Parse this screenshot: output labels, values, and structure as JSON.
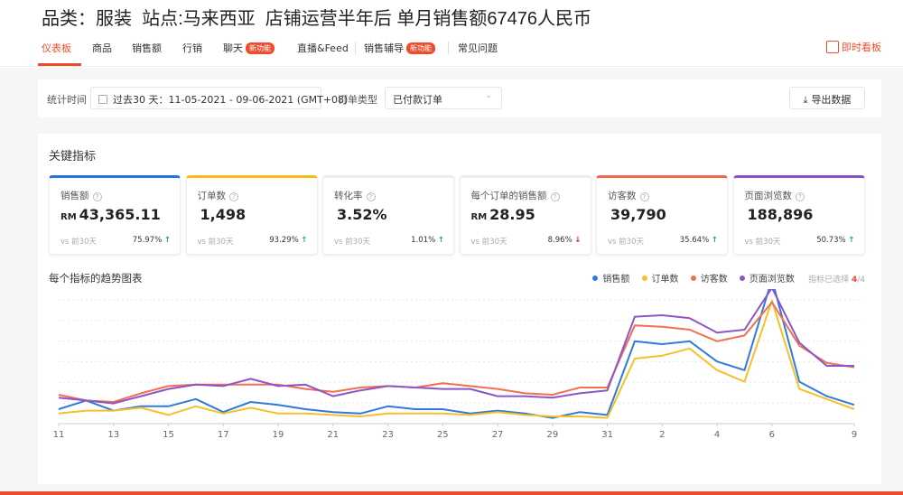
{
  "caption": "品类：服装  站点:马来西亚  店铺运营半年后 单月销售额67476人民币",
  "nav": {
    "tabs": [
      {
        "label": "仪表板",
        "active": true
      },
      {
        "label": "商品"
      },
      {
        "label": "销售额"
      },
      {
        "label": "行销"
      },
      {
        "label": "聊天",
        "badge": "新功能"
      },
      {
        "label": "直播&Feed"
      },
      {
        "label": "销售辅导",
        "badge": "新功能"
      },
      {
        "label": "常见问题"
      }
    ],
    "live_label": "即时看板"
  },
  "filter": {
    "time_label": "统计时间",
    "time_value": "过去30 天：11-05-2021 - 09-06-2021 (GMT+08)",
    "order_type_label": "订单类型",
    "order_type_value": "已付款订单",
    "export_label": "导出数据"
  },
  "panel_title": "关键指标",
  "cards": [
    {
      "label": "销售额",
      "currency": "RM",
      "value": "43,365.11",
      "vs": "vs 前30天",
      "change": "75.97%",
      "direction": "up",
      "color": "#2673dd"
    },
    {
      "label": "订单数",
      "currency": "",
      "value": "1,498",
      "vs": "vs 前30天",
      "change": "93.29%",
      "direction": "up",
      "color": "#f6bd16"
    },
    {
      "label": "转化率",
      "currency": "",
      "value": "3.52%",
      "vs": "vs 前30天",
      "change": "1.01%",
      "direction": "up",
      "color": ""
    },
    {
      "label": "每个订单的销售额",
      "currency": "RM",
      "value": "28.95",
      "vs": "vs 前30天",
      "change": "8.96%",
      "direction": "down",
      "color": ""
    },
    {
      "label": "访客数",
      "currency": "",
      "value": "39,790",
      "vs": "vs 前30天",
      "change": "35.64%",
      "direction": "up",
      "color": "#ee6a4c"
    },
    {
      "label": "页面浏览数",
      "currency": "",
      "value": "188,896",
      "vs": "vs 前30天",
      "change": "50.73%",
      "direction": "up",
      "color": "#8e51c4"
    }
  ],
  "chart_title": "每个指标的趋势图表",
  "selected": {
    "label": "指标已选择",
    "count": "4",
    "total": "/4"
  },
  "chart_data": {
    "type": "line",
    "x": [
      "11",
      "12",
      "13",
      "14",
      "15",
      "16",
      "17",
      "18",
      "19",
      "20",
      "21",
      "22",
      "23",
      "24",
      "25",
      "26",
      "27",
      "28",
      "29",
      "30",
      "31",
      "1",
      "2",
      "3",
      "4",
      "5",
      "6",
      "7",
      "8",
      "9"
    ],
    "x_tick_labels": [
      "11",
      "13",
      "15",
      "17",
      "19",
      "21",
      "23",
      "25",
      "27",
      "29",
      "31",
      "2",
      "4",
      "6",
      "9"
    ],
    "y_scale": "relative, unlabeled",
    "grid": true,
    "legend_position": "top-right",
    "series": [
      {
        "name": "销售额",
        "color": "#2f7bdc",
        "values": [
          10,
          16,
          9,
          12,
          12,
          17,
          8,
          15,
          13,
          10,
          8,
          7,
          12,
          10,
          10,
          7,
          9,
          7,
          4,
          8,
          6,
          57,
          55,
          57,
          43,
          37,
          100,
          29,
          19,
          13
        ]
      },
      {
        "name": "订单数",
        "color": "#f5c02a",
        "values": [
          7,
          9,
          9,
          11,
          6,
          12,
          7,
          11,
          7,
          7,
          6,
          5,
          7,
          7,
          7,
          6,
          8,
          6,
          5,
          5,
          4,
          45,
          47,
          52,
          37,
          29,
          85,
          24,
          17,
          10
        ]
      },
      {
        "name": "访客数",
        "color": "#f0704f",
        "values": [
          20,
          16,
          15,
          21,
          26,
          27,
          27,
          27,
          27,
          24,
          22,
          25,
          26,
          25,
          28,
          26,
          24,
          21,
          20,
          25,
          25,
          68,
          67,
          65,
          57,
          61,
          84,
          54,
          42,
          39
        ]
      },
      {
        "name": "页面浏览数",
        "color": "#8e55c8",
        "values": [
          18,
          16,
          14,
          19,
          24,
          27,
          26,
          31,
          26,
          27,
          19,
          23,
          26,
          25,
          24,
          24,
          19,
          19,
          18,
          21,
          23,
          74,
          75,
          73,
          63,
          65,
          94,
          56,
          40,
          40
        ]
      }
    ]
  }
}
